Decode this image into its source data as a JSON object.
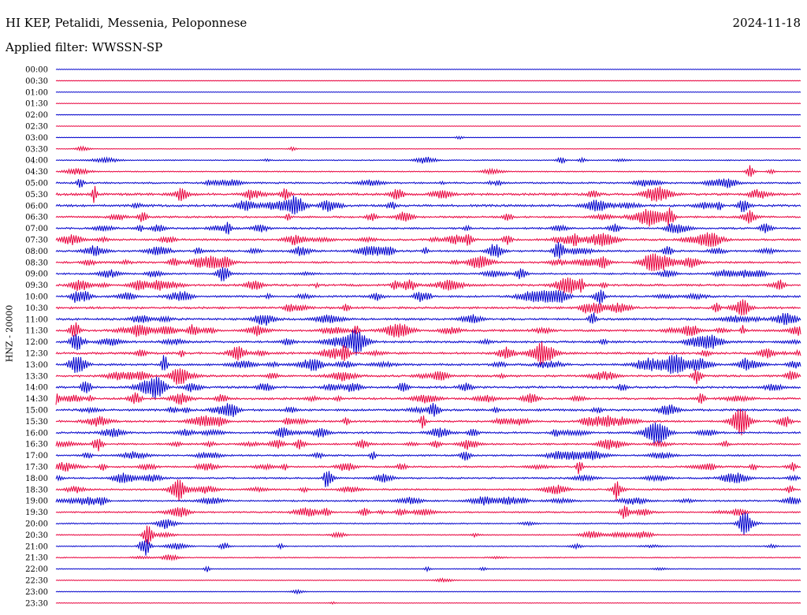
{
  "header": {
    "station": "HI KEP, Petalidi, Messenia, Peloponnese",
    "date": "2024-11-18",
    "filter": "Applied filter: WWSSN-SP"
  },
  "chart_data": {
    "type": "line",
    "title": "HI KEP, Petalidi, Messenia, Peloponnese",
    "subtitle": "Applied filter: WWSSN-SP",
    "date": "2024-11-18",
    "ylabel": "HNZ - 20000",
    "colors": [
      "#0000cc",
      "#e8003c"
    ],
    "grid": false,
    "rows": [
      {
        "label": "00:00",
        "activity": 0.05
      },
      {
        "label": "00:30",
        "activity": 0.05
      },
      {
        "label": "01:00",
        "activity": 0.03
      },
      {
        "label": "01:30",
        "activity": 0.03
      },
      {
        "label": "02:00",
        "activity": 0.03
      },
      {
        "label": "02:30",
        "activity": 0.03
      },
      {
        "label": "03:00",
        "activity": 0.08
      },
      {
        "label": "03:30",
        "activity": 0.12
      },
      {
        "label": "04:00",
        "activity": 0.3
      },
      {
        "label": "04:30",
        "activity": 0.3
      },
      {
        "label": "05:00",
        "activity": 0.6
      },
      {
        "label": "05:30",
        "activity": 0.9
      },
      {
        "label": "06:00",
        "activity": 0.9
      },
      {
        "label": "06:30",
        "activity": 0.7
      },
      {
        "label": "07:00",
        "activity": 0.7
      },
      {
        "label": "07:30",
        "activity": 0.7
      },
      {
        "label": "08:00",
        "activity": 0.7
      },
      {
        "label": "08:30",
        "activity": 0.7
      },
      {
        "label": "09:00",
        "activity": 0.6
      },
      {
        "label": "09:30",
        "activity": 0.8
      },
      {
        "label": "10:00",
        "activity": 0.7
      },
      {
        "label": "10:30",
        "activity": 0.8
      },
      {
        "label": "11:00",
        "activity": 0.8
      },
      {
        "label": "11:30",
        "activity": 0.8
      },
      {
        "label": "12:00",
        "activity": 0.8
      },
      {
        "label": "12:30",
        "activity": 0.8
      },
      {
        "label": "13:00",
        "activity": 0.8
      },
      {
        "label": "13:30",
        "activity": 0.8
      },
      {
        "label": "14:00",
        "activity": 0.8
      },
      {
        "label": "14:30",
        "activity": 0.8
      },
      {
        "label": "15:00",
        "activity": 0.8
      },
      {
        "label": "15:30",
        "activity": 0.7
      },
      {
        "label": "16:00",
        "activity": 0.7
      },
      {
        "label": "16:30",
        "activity": 0.6
      },
      {
        "label": "17:00",
        "activity": 0.6
      },
      {
        "label": "17:30",
        "activity": 0.6
      },
      {
        "label": "18:00",
        "activity": 0.6
      },
      {
        "label": "18:30",
        "activity": 0.6
      },
      {
        "label": "19:00",
        "activity": 0.6
      },
      {
        "label": "19:30",
        "activity": 0.5
      },
      {
        "label": "20:00",
        "activity": 0.4
      },
      {
        "label": "20:30",
        "activity": 0.3
      },
      {
        "label": "21:00",
        "activity": 0.3
      },
      {
        "label": "21:30",
        "activity": 0.3
      },
      {
        "label": "22:00",
        "activity": 0.2
      },
      {
        "label": "22:30",
        "activity": 0.15
      },
      {
        "label": "23:00",
        "activity": 0.12
      },
      {
        "label": "23:30",
        "activity": 0.1
      }
    ]
  }
}
